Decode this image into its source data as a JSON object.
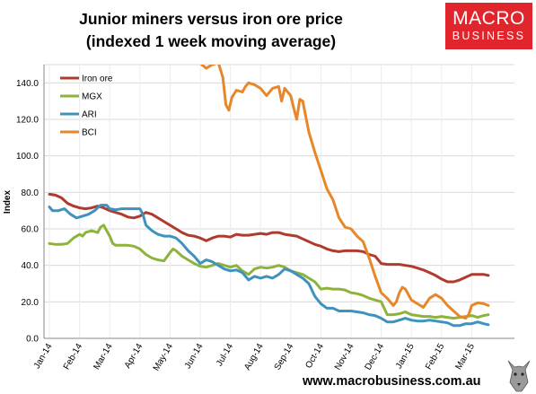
{
  "title_line1": "Junior miners versus iron ore price",
  "title_line2": "(indexed 1 week moving average)",
  "logo": {
    "line1": "MACRO",
    "line2": "BUSINESS"
  },
  "footer_url": "www.macrobusiness.com.au",
  "chart_data": {
    "type": "line",
    "ylabel": "Index",
    "ylim": [
      0,
      150
    ],
    "yticks": [
      0,
      20,
      40,
      60,
      80,
      100,
      120,
      140
    ],
    "ytick_labels": [
      "0.0",
      "20.0",
      "40.0",
      "60.0",
      "80.0",
      "100.0",
      "120.0",
      "140.0"
    ],
    "categories": [
      "Jan-14",
      "Feb-14",
      "Mar-14",
      "Apr-14",
      "May-14",
      "Jun-14",
      "Jul-14",
      "Aug-14",
      "Sep-14",
      "Oct-14",
      "Nov-14",
      "Dec-14",
      "Jan-15",
      "Feb-15",
      "Mar-15"
    ],
    "x_range": [
      0,
      14.55
    ],
    "grid": true,
    "legend_position": "top-left",
    "series": [
      {
        "name": "Iron ore",
        "color": "#b03a2e",
        "points": [
          [
            0,
            79
          ],
          [
            0.2,
            78.5
          ],
          [
            0.4,
            77
          ],
          [
            0.6,
            74
          ],
          [
            0.8,
            72.5
          ],
          [
            1,
            71.5
          ],
          [
            1.2,
            71
          ],
          [
            1.4,
            71.5
          ],
          [
            1.6,
            72.5
          ],
          [
            1.8,
            71.5
          ],
          [
            2,
            70
          ],
          [
            2.2,
            69
          ],
          [
            2.4,
            68
          ],
          [
            2.6,
            66.5
          ],
          [
            2.8,
            66
          ],
          [
            3,
            67
          ],
          [
            3.2,
            69
          ],
          [
            3.4,
            68
          ],
          [
            3.6,
            66
          ],
          [
            3.8,
            64
          ],
          [
            4,
            62
          ],
          [
            4.2,
            60
          ],
          [
            4.4,
            58
          ],
          [
            4.6,
            56.5
          ],
          [
            4.8,
            56
          ],
          [
            5,
            55
          ],
          [
            5.2,
            53.5
          ],
          [
            5.4,
            55
          ],
          [
            5.6,
            56
          ],
          [
            5.8,
            56
          ],
          [
            6,
            55.5
          ],
          [
            6.2,
            57
          ],
          [
            6.4,
            56.5
          ],
          [
            6.6,
            56.5
          ],
          [
            6.8,
            57
          ],
          [
            7,
            57.5
          ],
          [
            7.2,
            57
          ],
          [
            7.4,
            58
          ],
          [
            7.6,
            58
          ],
          [
            7.8,
            57
          ],
          [
            8,
            56.5
          ],
          [
            8.2,
            56
          ],
          [
            8.4,
            54.5
          ],
          [
            8.6,
            53
          ],
          [
            8.8,
            51.5
          ],
          [
            9,
            50.5
          ],
          [
            9.2,
            49
          ],
          [
            9.4,
            48
          ],
          [
            9.6,
            47.5
          ],
          [
            9.8,
            48
          ],
          [
            10,
            48
          ],
          [
            10.2,
            48
          ],
          [
            10.4,
            47.5
          ],
          [
            10.6,
            46
          ],
          [
            10.8,
            45
          ],
          [
            11,
            41
          ],
          [
            11.2,
            40.5
          ],
          [
            11.4,
            40.5
          ],
          [
            11.6,
            40.5
          ],
          [
            11.8,
            40
          ],
          [
            12,
            39.5
          ],
          [
            12.2,
            38.5
          ],
          [
            12.4,
            37.5
          ],
          [
            12.6,
            36
          ],
          [
            12.8,
            34.5
          ],
          [
            13,
            32.5
          ],
          [
            13.2,
            31
          ],
          [
            13.4,
            31
          ],
          [
            13.6,
            32
          ],
          [
            13.8,
            33.5
          ],
          [
            14,
            35
          ],
          [
            14.2,
            35
          ],
          [
            14.4,
            35
          ],
          [
            14.55,
            34.5
          ]
        ]
      },
      {
        "name": "MGX",
        "color": "#8db33b",
        "points": [
          [
            0,
            52
          ],
          [
            0.2,
            51.5
          ],
          [
            0.4,
            51.5
          ],
          [
            0.6,
            52
          ],
          [
            0.8,
            55
          ],
          [
            1,
            57
          ],
          [
            1.1,
            56
          ],
          [
            1.2,
            58
          ],
          [
            1.4,
            59
          ],
          [
            1.6,
            58
          ],
          [
            1.7,
            61
          ],
          [
            1.8,
            62
          ],
          [
            1.9,
            59
          ],
          [
            2,
            56
          ],
          [
            2.1,
            52
          ],
          [
            2.2,
            51
          ],
          [
            2.6,
            51
          ],
          [
            2.8,
            50.5
          ],
          [
            3,
            49
          ],
          [
            3.2,
            46
          ],
          [
            3.4,
            44
          ],
          [
            3.6,
            43
          ],
          [
            3.8,
            42.5
          ],
          [
            4,
            47
          ],
          [
            4.1,
            49
          ],
          [
            4.2,
            48
          ],
          [
            4.4,
            45
          ],
          [
            4.6,
            43
          ],
          [
            4.8,
            41
          ],
          [
            5,
            39.5
          ],
          [
            5.2,
            39
          ],
          [
            5.4,
            40
          ],
          [
            5.6,
            41
          ],
          [
            5.8,
            40
          ],
          [
            6,
            39
          ],
          [
            6.2,
            40
          ],
          [
            6.4,
            37
          ],
          [
            6.6,
            35
          ],
          [
            6.8,
            38
          ],
          [
            7,
            39
          ],
          [
            7.2,
            38.5
          ],
          [
            7.4,
            39
          ],
          [
            7.6,
            40
          ],
          [
            7.8,
            39
          ],
          [
            8,
            37
          ],
          [
            8.2,
            36
          ],
          [
            8.4,
            35
          ],
          [
            8.6,
            33
          ],
          [
            8.8,
            31
          ],
          [
            9,
            27
          ],
          [
            9.2,
            27.5
          ],
          [
            9.4,
            27
          ],
          [
            9.6,
            27
          ],
          [
            9.8,
            26.5
          ],
          [
            10,
            25
          ],
          [
            10.2,
            24.5
          ],
          [
            10.4,
            23.5
          ],
          [
            10.6,
            22
          ],
          [
            10.8,
            21
          ],
          [
            11,
            20
          ],
          [
            11.2,
            13
          ],
          [
            11.4,
            13
          ],
          [
            11.6,
            13.5
          ],
          [
            11.8,
            14.5
          ],
          [
            12,
            13
          ],
          [
            12.2,
            12.5
          ],
          [
            12.4,
            12
          ],
          [
            12.6,
            12
          ],
          [
            12.8,
            11.5
          ],
          [
            13,
            12
          ],
          [
            13.2,
            11.5
          ],
          [
            13.4,
            11
          ],
          [
            13.6,
            11.5
          ],
          [
            13.8,
            12
          ],
          [
            14,
            12.5
          ],
          [
            14.2,
            11.5
          ],
          [
            14.4,
            12.5
          ],
          [
            14.55,
            13
          ]
        ]
      },
      {
        "name": "ARI",
        "color": "#3d93bd",
        "points": [
          [
            0,
            72
          ],
          [
            0.1,
            70
          ],
          [
            0.3,
            70
          ],
          [
            0.5,
            71
          ],
          [
            0.7,
            68
          ],
          [
            0.9,
            66
          ],
          [
            1.1,
            67
          ],
          [
            1.3,
            68
          ],
          [
            1.5,
            70
          ],
          [
            1.7,
            73
          ],
          [
            1.9,
            73
          ],
          [
            2,
            71
          ],
          [
            2.2,
            70.5
          ],
          [
            2.4,
            71
          ],
          [
            2.6,
            71
          ],
          [
            2.8,
            71
          ],
          [
            3,
            71
          ],
          [
            3.1,
            68
          ],
          [
            3.2,
            62
          ],
          [
            3.4,
            59
          ],
          [
            3.6,
            57
          ],
          [
            3.8,
            56
          ],
          [
            4,
            56
          ],
          [
            4.2,
            55
          ],
          [
            4.4,
            52
          ],
          [
            4.6,
            48
          ],
          [
            4.8,
            45
          ],
          [
            5,
            41
          ],
          [
            5.2,
            43
          ],
          [
            5.4,
            42
          ],
          [
            5.6,
            40
          ],
          [
            5.8,
            38
          ],
          [
            6,
            37
          ],
          [
            6.2,
            37.5
          ],
          [
            6.4,
            36
          ],
          [
            6.6,
            32
          ],
          [
            6.8,
            34
          ],
          [
            7,
            33
          ],
          [
            7.2,
            34
          ],
          [
            7.4,
            33
          ],
          [
            7.6,
            35
          ],
          [
            7.8,
            38
          ],
          [
            8,
            37
          ],
          [
            8.2,
            35
          ],
          [
            8.4,
            33
          ],
          [
            8.6,
            30
          ],
          [
            8.8,
            23
          ],
          [
            9,
            19
          ],
          [
            9.2,
            16.5
          ],
          [
            9.4,
            16.5
          ],
          [
            9.6,
            15
          ],
          [
            9.8,
            15
          ],
          [
            10,
            15
          ],
          [
            10.2,
            14.5
          ],
          [
            10.4,
            14
          ],
          [
            10.6,
            13
          ],
          [
            10.8,
            12.5
          ],
          [
            11,
            11
          ],
          [
            11.2,
            9
          ],
          [
            11.4,
            9
          ],
          [
            11.6,
            10
          ],
          [
            11.8,
            11
          ],
          [
            12,
            10
          ],
          [
            12.2,
            9.5
          ],
          [
            12.4,
            9.5
          ],
          [
            12.6,
            10
          ],
          [
            12.8,
            9.5
          ],
          [
            13,
            9
          ],
          [
            13.2,
            8.5
          ],
          [
            13.4,
            7
          ],
          [
            13.6,
            7
          ],
          [
            13.8,
            8
          ],
          [
            14,
            8
          ],
          [
            14.2,
            9
          ],
          [
            14.4,
            8
          ],
          [
            14.55,
            7.5
          ]
        ]
      },
      {
        "name": "BCI",
        "color": "#e8862a",
        "points": [
          [
            5.05,
            150
          ],
          [
            5.2,
            148
          ],
          [
            5.4,
            150
          ],
          [
            5.6,
            151
          ],
          [
            5.75,
            143
          ],
          [
            5.85,
            128
          ],
          [
            5.95,
            125
          ],
          [
            6.05,
            132
          ],
          [
            6.2,
            136
          ],
          [
            6.4,
            135
          ],
          [
            6.5,
            138
          ],
          [
            6.6,
            140
          ],
          [
            6.8,
            139
          ],
          [
            7,
            137
          ],
          [
            7.2,
            133
          ],
          [
            7.4,
            137
          ],
          [
            7.6,
            138
          ],
          [
            7.7,
            130
          ],
          [
            7.8,
            137
          ],
          [
            8,
            133
          ],
          [
            8.1,
            126
          ],
          [
            8.2,
            120
          ],
          [
            8.3,
            131
          ],
          [
            8.4,
            130
          ],
          [
            8.6,
            113
          ],
          [
            8.8,
            102
          ],
          [
            9,
            92
          ],
          [
            9.2,
            82
          ],
          [
            9.4,
            76
          ],
          [
            9.6,
            66
          ],
          [
            9.8,
            61
          ],
          [
            10,
            60
          ],
          [
            10.2,
            56
          ],
          [
            10.4,
            53
          ],
          [
            10.6,
            44
          ],
          [
            10.8,
            34
          ],
          [
            11,
            25
          ],
          [
            11.2,
            22
          ],
          [
            11.4,
            18
          ],
          [
            11.5,
            20
          ],
          [
            11.6,
            25
          ],
          [
            11.7,
            28
          ],
          [
            11.8,
            27
          ],
          [
            12,
            21
          ],
          [
            12.2,
            19
          ],
          [
            12.4,
            17
          ],
          [
            12.6,
            22
          ],
          [
            12.8,
            24
          ],
          [
            13,
            22
          ],
          [
            13.2,
            18
          ],
          [
            13.4,
            15
          ],
          [
            13.6,
            12
          ],
          [
            13.8,
            11
          ],
          [
            13.9,
            13
          ],
          [
            14,
            18
          ],
          [
            14.2,
            19.5
          ],
          [
            14.4,
            19
          ],
          [
            14.55,
            18
          ]
        ]
      }
    ]
  }
}
